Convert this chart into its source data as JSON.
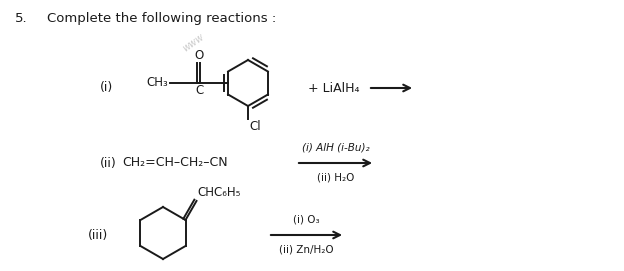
{
  "title_num": "5.",
  "title_text": "Complete the following reactions :",
  "bg_color": "#ffffff",
  "text_color": "#1a1a1a",
  "fig_width": 6.24,
  "fig_height": 2.71,
  "dpi": 100,
  "watermark": "www",
  "rxn1_label": "(i)",
  "rxn1_reagent": "+ LiAlH₄",
  "rxn2_label": "(ii)",
  "rxn2_formula": "CH₂=CH–CH₂–CN",
  "rxn2_arrow_top": "(i) AlH (i-Bu)₂",
  "rxn2_arrow_bot": "(ii) H₂O",
  "rxn3_label": "(iii)",
  "rxn3_sub": "CHC₆H₅",
  "rxn3_arrow_top": "(i) O₃",
  "rxn3_arrow_bot": "(ii) Zn/H₂O"
}
